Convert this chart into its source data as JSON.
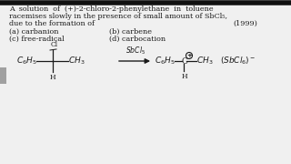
{
  "bg_color": "#f0f0f0",
  "content_bg": "#ffffff",
  "text_color": "#1a1a1a",
  "top_border_color": "#1a1a1a",
  "tab_color": "#a0a0a0",
  "title_line1": "A  solution  of  (+)-2-chloro-2-phenylethane  in  toluene",
  "title_line2": "racemises slowly in the presence of small amount of SbCl₅,",
  "title_line3": "due to the formation of",
  "year": "(1999)",
  "opt_a": "(a) carbanion",
  "opt_b": "(b) carbene",
  "opt_c": "(c) free-radical",
  "opt_d": "(d) carbocation",
  "reagent": "SbCl₅",
  "product_ion": "(SbCl₆)⁻",
  "fs": 5.8,
  "fs_chem": 6.5
}
